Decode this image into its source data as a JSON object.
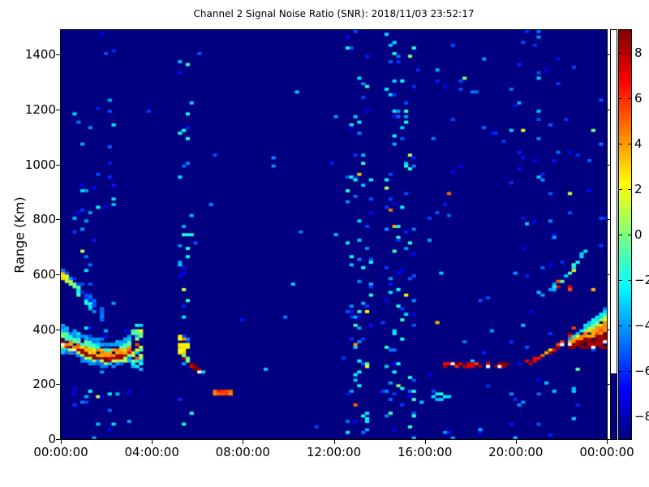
{
  "chart_data": {
    "type": "heatmap",
    "title": "Channel 2 Signal Noise Ratio (SNR): 2018/11/03 23:52:17",
    "ylabel": "Range (Km)",
    "x_tick_labels": [
      "00:00:00",
      "04:00:00",
      "08:00:00",
      "12:00:00",
      "16:00:00",
      "20:00:00",
      "00:00:00"
    ],
    "x_tick_hours": [
      0,
      4,
      8,
      12,
      16,
      20,
      24
    ],
    "xlim_hours": [
      0,
      24
    ],
    "y_ticks": [
      0,
      200,
      400,
      600,
      800,
      1000,
      1200,
      1400
    ],
    "ylim": [
      0,
      1490
    ],
    "colormap": "jet",
    "colorbar": {
      "vmin": -9,
      "vmax": 9,
      "ticks": [
        8,
        6,
        4,
        2,
        0,
        -2,
        -4,
        -6,
        -8
      ],
      "over_color": "#ffffff"
    },
    "background_snr": -9,
    "grid_cells": {
      "cols": 140,
      "rows": 149
    },
    "seed": 42,
    "speckle_bright_fraction": 0.05,
    "speckle_bright_snr": [
      -1,
      5
    ],
    "speckle_columns": [
      [
        0.0,
        24.0,
        0.0035,
        -7,
        -3
      ],
      [
        0.65,
        2.4,
        0.035,
        -7,
        -2
      ],
      [
        5.15,
        5.8,
        0.05,
        -7,
        -1
      ],
      [
        12.55,
        13.7,
        0.07,
        -7,
        -1
      ],
      [
        14.3,
        15.5,
        0.07,
        -7,
        -1
      ],
      [
        16.2,
        23.9,
        0.012,
        -7,
        -3
      ],
      [
        19.8,
        21.8,
        0.018,
        -7,
        -3
      ]
    ],
    "patches": [
      [
        0.0,
        2.7,
        15,
        250,
        0.02,
        -6,
        -2
      ],
      [
        3.22,
        3.45,
        255,
        415,
        0.45,
        -4,
        2
      ],
      [
        3.28,
        3.42,
        295,
        345,
        0.7,
        2,
        6
      ],
      [
        5.26,
        5.44,
        348,
        372,
        0.5,
        2,
        5
      ],
      [
        5.3,
        5.52,
        318,
        342,
        0.5,
        0,
        3
      ],
      [
        16.35,
        17.1,
        148,
        170,
        0.35,
        -4,
        -1
      ],
      [
        21.9,
        22.35,
        548,
        580,
        0.25,
        5,
        9
      ],
      [
        22.3,
        22.55,
        612,
        642,
        0.3,
        1,
        6
      ]
    ],
    "traces": [
      {
        "name": "dawn-upper-arc",
        "points": [
          [
            0.05,
            605
          ],
          [
            0.7,
            545
          ],
          [
            1.35,
            485
          ],
          [
            1.95,
            438
          ]
        ],
        "snr": [
          3,
          -1,
          -3,
          -4
        ],
        "width_km": 26,
        "halo_above": [
          [
            -5,
            18
          ]
        ],
        "halo_below": [],
        "density": 0.7,
        "halo_density": 0.35,
        "jitter": 1.5
      },
      {
        "name": "dawn-bright-band",
        "points": [
          [
            0.0,
            348
          ],
          [
            0.7,
            325
          ],
          [
            1.5,
            300
          ],
          [
            2.15,
            290
          ],
          [
            2.65,
            297
          ],
          [
            3.1,
            320
          ]
        ],
        "snr": [
          9,
          9,
          8.5,
          8.5,
          8,
          8
        ],
        "width_km": 20,
        "halo_above": [
          [
            4,
            20
          ],
          [
            -1,
            20
          ],
          [
            -4,
            15
          ]
        ],
        "halo_below": [
          [
            1,
            8
          ],
          [
            -4,
            10
          ]
        ],
        "density": 0.95,
        "halo_density": 0.7,
        "jitter": 1.2
      },
      {
        "name": "morning-descending-trace",
        "points": [
          [
            5.38,
            298
          ],
          [
            5.75,
            272
          ],
          [
            6.1,
            253
          ]
        ],
        "snr": [
          8.5,
          8,
          9.6
        ],
        "width_km": 9,
        "halo_above": [
          [
            0,
            8
          ]
        ],
        "halo_below": [],
        "density": 0.85,
        "halo_density": 0.25,
        "jitter": 1
      },
      {
        "name": "morning-sporadic-tail",
        "points": [
          [
            6.15,
            250
          ],
          [
            6.65,
            238
          ]
        ],
        "snr": [
          -3,
          -4
        ],
        "width_km": 8,
        "halo_above": [],
        "halo_below": [],
        "density": 0.3,
        "halo_density": 0,
        "jitter": 1
      },
      {
        "name": "sporadic-e-segment",
        "points": [
          [
            6.5,
            176
          ],
          [
            7.0,
            172
          ],
          [
            7.6,
            169
          ]
        ],
        "snr": [
          2.5,
          6,
          4
        ],
        "width_km": 9,
        "halo_above": [],
        "halo_below": [],
        "density": 0.9,
        "halo_density": 0,
        "jitter": 1
      },
      {
        "name": "evening-layer-line",
        "points": [
          [
            16.8,
            272
          ],
          [
            18.6,
            270
          ],
          [
            20.75,
            280
          ]
        ],
        "snr": [
          7,
          8.5,
          7.5
        ],
        "width_km": 8,
        "halo_above": [],
        "halo_below": [],
        "density": 0.55,
        "halo_density": 0,
        "jitter": 2.5
      },
      {
        "name": "evening-rising-trace",
        "points": [
          [
            20.8,
            287
          ],
          [
            21.7,
            325
          ],
          [
            22.3,
            372
          ],
          [
            22.6,
            415
          ]
        ],
        "snr": [
          5,
          6,
          7,
          8
        ],
        "width_km": 10,
        "halo_above": [],
        "halo_below": [],
        "density": 0.6,
        "halo_density": 0,
        "jitter": 3
      },
      {
        "name": "upper-right-arc",
        "points": [
          [
            20.85,
            520
          ],
          [
            21.7,
            556
          ],
          [
            22.4,
            615
          ],
          [
            23.0,
            682
          ],
          [
            23.2,
            708
          ]
        ],
        "snr": [
          -4,
          -3,
          -2,
          -2,
          -3
        ],
        "width_km": 12,
        "halo_above": [],
        "halo_below": [],
        "density": 0.5,
        "halo_density": 0,
        "jitter": 1.5
      }
    ],
    "wedge": {
      "name": "night-wedge",
      "t": [
        22.4,
        24.0
      ],
      "bottom_km": [
        338,
        330
      ],
      "top_km": [
        368,
        472
      ],
      "layers": [
        [
          0.0,
          0.42,
          8.7
        ],
        [
          0.42,
          0.72,
          4
        ],
        [
          0.72,
          0.87,
          0.5
        ],
        [
          0.87,
          1.0,
          -3
        ]
      ],
      "density": 0.92,
      "jitter": 1.2
    },
    "aux_strip": {
      "no_data_color": "#ffffff",
      "data_km": [
        0,
        240
      ]
    }
  },
  "layout_colors": {
    "frame": "#000000",
    "figure_bg": "#ffffff"
  }
}
